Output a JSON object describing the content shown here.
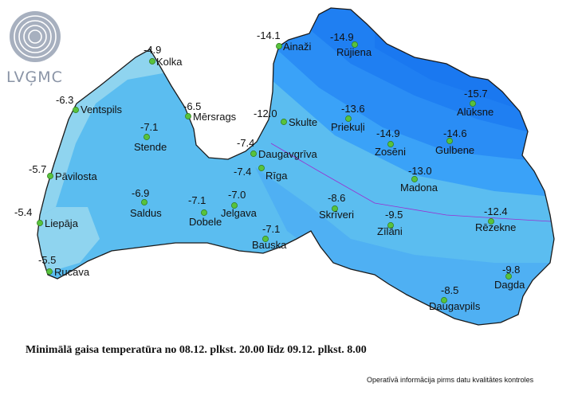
{
  "logo": {
    "text": "LVĢMC"
  },
  "caption": "Minimālā gaisa temperatūra no 08.12. plkst. 20.00 līdz 09.12. plkst. 8.00",
  "note": "Operatīvā informācija pirms datu kvalitātes kontroles",
  "colors": {
    "zone_coldest": "#1a78f0",
    "zone_cold": "#2a8df5",
    "zone_mid": "#3aa2f8",
    "zone_mild": "#5bbdf0",
    "zone_warm": "#8fd4ef",
    "station_dot": "#58c23c",
    "border": "#9a2fd0"
  },
  "stations": [
    {
      "name": "Ainaži",
      "value": "-14.1"
    },
    {
      "name": "Rūjiena",
      "value": "-14.9"
    },
    {
      "name": "Kolka",
      "value": "-4.9"
    },
    {
      "name": "Ventspils",
      "value": "-6.3"
    },
    {
      "name": "Mērsrags",
      "value": "-6.5"
    },
    {
      "name": "Skulte",
      "value": "-12.0"
    },
    {
      "name": "Priekuļi",
      "value": "-13.6"
    },
    {
      "name": "Alūksne",
      "value": "-15.7"
    },
    {
      "name": "Stende",
      "value": "-7.1"
    },
    {
      "name": "Zosēni",
      "value": "-14.9"
    },
    {
      "name": "Gulbene",
      "value": "-14.6"
    },
    {
      "name": "Daugavgrīva",
      "value": "-7.4"
    },
    {
      "name": "Pāvilosta",
      "value": "-5.7"
    },
    {
      "name": "Rīga",
      "value": "-7.4"
    },
    {
      "name": "Madona",
      "value": "-13.0"
    },
    {
      "name": "Saldus",
      "value": "-6.9"
    },
    {
      "name": "Dobele",
      "value": "-7.1"
    },
    {
      "name": "Jelgava",
      "value": "-7.0"
    },
    {
      "name": "Skrīveri",
      "value": "-8.6"
    },
    {
      "name": "Liepāja",
      "value": "-5.4"
    },
    {
      "name": "Zīlāni",
      "value": "-9.5"
    },
    {
      "name": "Rēzekne",
      "value": "-12.4"
    },
    {
      "name": "Bauska",
      "value": "-7.1"
    },
    {
      "name": "Rucava",
      "value": "-5.5"
    },
    {
      "name": "Dagda",
      "value": "-9.8"
    },
    {
      "name": "Daugavpils",
      "value": "-8.5"
    }
  ]
}
